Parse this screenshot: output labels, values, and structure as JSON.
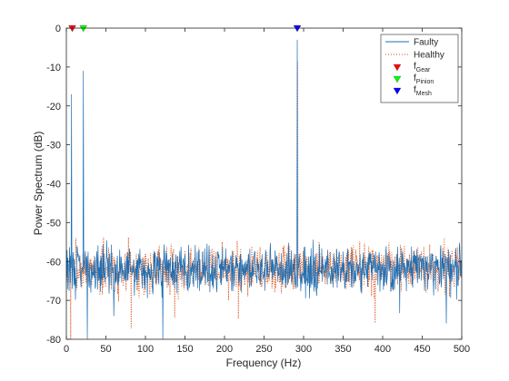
{
  "chart_data": {
    "type": "line",
    "title": "",
    "xlabel": "Frequency (Hz)",
    "ylabel": "Power Spectrum (dB)",
    "xlim": [
      0,
      500
    ],
    "ylim": [
      -80,
      0
    ],
    "xticks": [
      0,
      50,
      100,
      150,
      200,
      250,
      300,
      350,
      400,
      450,
      500
    ],
    "yticks": [
      0,
      -10,
      -20,
      -30,
      -40,
      -50,
      -60,
      -70,
      -80
    ],
    "xtick_labels": [
      "0",
      "50",
      "100",
      "150",
      "200",
      "250",
      "300",
      "350",
      "400",
      "450",
      "500"
    ],
    "ytick_labels": [
      "0",
      "-10",
      "-20",
      "-30",
      "-40",
      "-50",
      "-60",
      "-70",
      "-80"
    ],
    "grid": false,
    "legend_position": "top-right",
    "noise_floor": {
      "mean_db": -62,
      "spread_db": 5,
      "bin_hz": 0.5,
      "min_db": -80,
      "max_db": -52
    },
    "series": [
      {
        "name": "Faulty",
        "style": "solid",
        "color": "#1f6fb3",
        "peaks": [
          {
            "x": 6.5,
            "y": -17
          },
          {
            "x": 21.5,
            "y": -11
          },
          {
            "x": 292,
            "y": -3
          }
        ]
      },
      {
        "name": "Healthy",
        "style": "dotted",
        "color": "#d95319",
        "peaks": [
          {
            "x": 292.5,
            "y": -8.5
          }
        ]
      }
    ],
    "markers": [
      {
        "name": "f",
        "subscript": "Gear",
        "x": 7.5,
        "y": 0,
        "color": "#ff0000"
      },
      {
        "name": "f",
        "subscript": "Pinion",
        "x": 21.5,
        "y": 0,
        "color": "#00ff00"
      },
      {
        "name": "f",
        "subscript": "Mesh",
        "x": 292,
        "y": 0,
        "color": "#0000ff"
      }
    ]
  }
}
